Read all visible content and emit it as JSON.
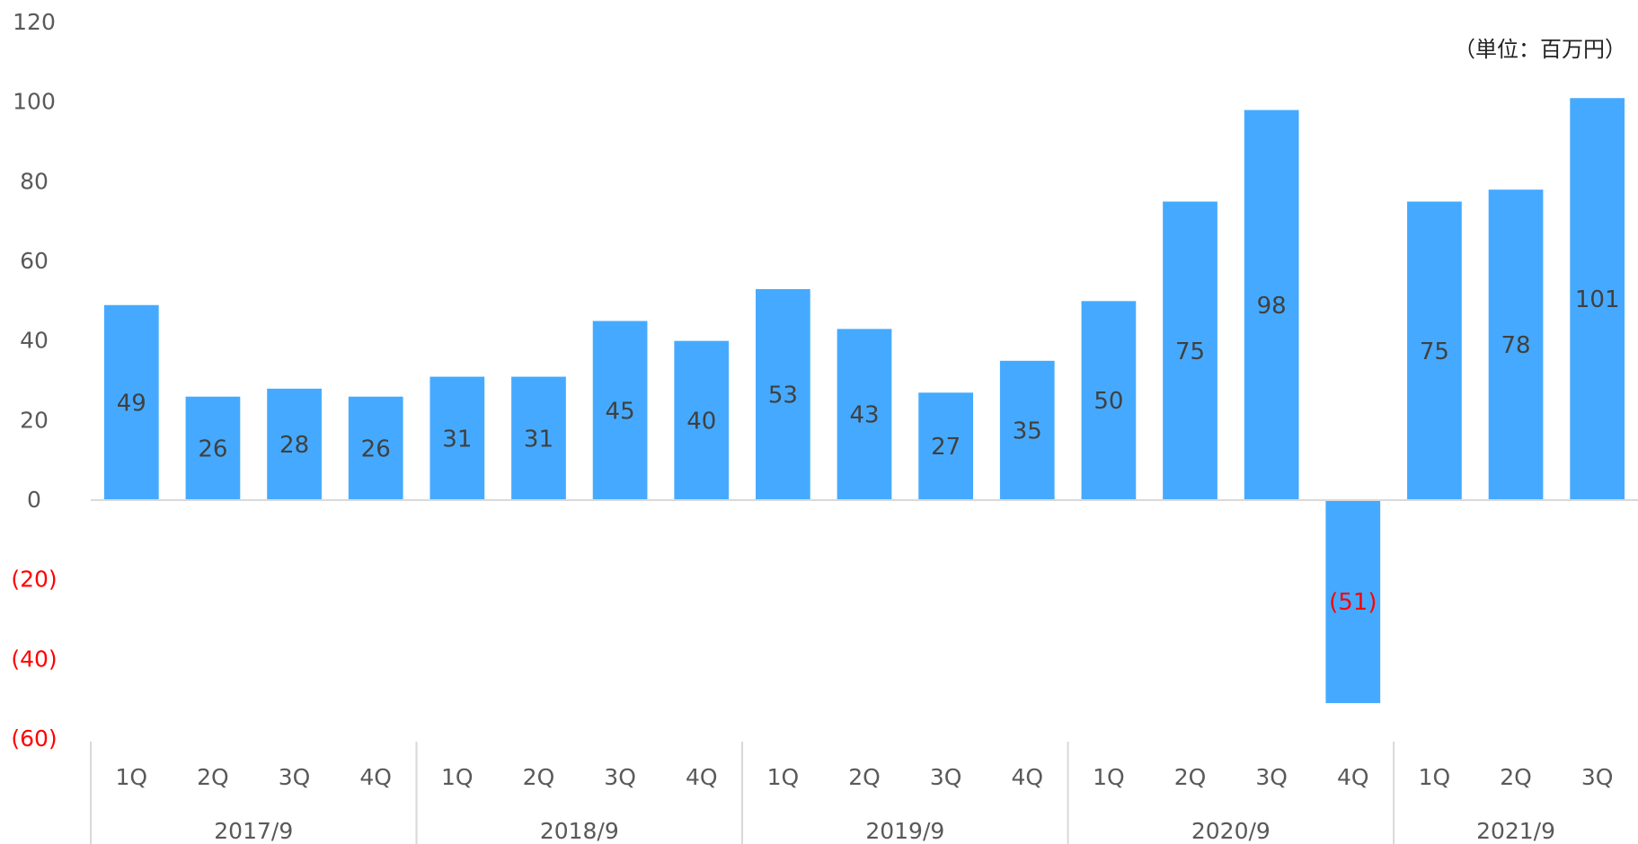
{
  "chart_data": {
    "type": "bar",
    "unit_note": "（単位：百万円）",
    "ylim": [
      -60,
      120
    ],
    "ytick_values": [
      120,
      100,
      80,
      60,
      40,
      20,
      0,
      -20,
      -40,
      -60
    ],
    "ytick_labels": [
      "120",
      "100",
      "80",
      "60",
      "40",
      "20",
      "0",
      "(20)",
      "(40)",
      "(60)"
    ],
    "quarters": [
      "1Q",
      "2Q",
      "3Q",
      "4Q",
      "1Q",
      "2Q",
      "3Q",
      "4Q",
      "1Q",
      "2Q",
      "3Q",
      "4Q",
      "1Q",
      "2Q",
      "3Q",
      "4Q",
      "1Q",
      "2Q",
      "3Q"
    ],
    "years": [
      {
        "label": "2017/9",
        "count": 4
      },
      {
        "label": "2018/9",
        "count": 4
      },
      {
        "label": "2019/9",
        "count": 4
      },
      {
        "label": "2020/9",
        "count": 4
      },
      {
        "label": "2021/9",
        "count": 3
      }
    ],
    "values": [
      49,
      26,
      28,
      26,
      31,
      31,
      45,
      40,
      53,
      43,
      27,
      35,
      50,
      75,
      98,
      -51,
      75,
      78,
      101
    ],
    "data_labels": [
      "49",
      "26",
      "28",
      "26",
      "31",
      "31",
      "45",
      "40",
      "53",
      "43",
      "27",
      "35",
      "50",
      "75",
      "98",
      "(51)",
      "75",
      "78",
      "101"
    ],
    "bar_color": "#45aaff",
    "negative_label_color": "#ff0000",
    "axis_color": "#d9d9d9"
  }
}
